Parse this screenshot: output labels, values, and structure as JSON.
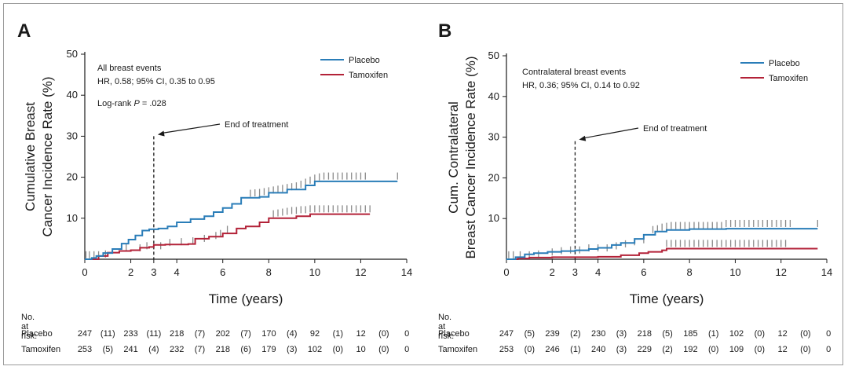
{
  "colors": {
    "placebo": "#2a7db8",
    "tamoxifen": "#b32238",
    "censor": "#8a8a8a",
    "axis": "#1a1a1a"
  },
  "chart_data": [
    {
      "panel": "A",
      "type": "line",
      "ylabel_lines": [
        "Cumulative Breast",
        "Cancer Incidence Rate (%)"
      ],
      "xlabel": "Time (years)",
      "xlim": [
        0,
        14
      ],
      "ylim": [
        0,
        50
      ],
      "xticks": [
        "0",
        "2",
        "3",
        "4",
        "6",
        "8",
        "10",
        "12",
        "14"
      ],
      "xtick_values": [
        0,
        2,
        3,
        4,
        6,
        8,
        10,
        12,
        14
      ],
      "yticks": [
        "10",
        "20",
        "30",
        "40",
        "50"
      ],
      "ytick_values": [
        10,
        20,
        30,
        40,
        50
      ],
      "annotation_lines": [
        "All breast events",
        "HR, 0.58; 95% CI, 0.35 to 0.95"
      ],
      "logrank_prefix": "Log-rank ",
      "logrank_p": "P",
      "logrank_value": " = .028",
      "end_of_treatment_label": "End of treatment",
      "end_of_treatment_x": 3,
      "end_of_treatment_y": 30,
      "legend": [
        "Placebo",
        "Tamoxifen"
      ],
      "series": [
        {
          "name": "Placebo",
          "points": [
            [
              0,
              0
            ],
            [
              0.3,
              0.3
            ],
            [
              0.5,
              0.8
            ],
            [
              0.8,
              1.5
            ],
            [
              1.2,
              2.5
            ],
            [
              1.6,
              3.8
            ],
            [
              1.9,
              4.8
            ],
            [
              2.2,
              5.8
            ],
            [
              2.5,
              7
            ],
            [
              2.8,
              7.3
            ],
            [
              3.2,
              7.5
            ],
            [
              3.6,
              8
            ],
            [
              4.0,
              9
            ],
            [
              4.6,
              9.8
            ],
            [
              5.2,
              10.5
            ],
            [
              5.6,
              11.5
            ],
            [
              6.0,
              12.5
            ],
            [
              6.4,
              13.5
            ],
            [
              6.8,
              15
            ],
            [
              7.6,
              15.2
            ],
            [
              8.0,
              16.2
            ],
            [
              8.8,
              17
            ],
            [
              9.6,
              18
            ],
            [
              10.0,
              19
            ],
            [
              13.6,
              19
            ]
          ]
        },
        {
          "name": "Tamoxifen",
          "points": [
            [
              0,
              0
            ],
            [
              0.6,
              0.8
            ],
            [
              1.0,
              1.6
            ],
            [
              1.5,
              2.0
            ],
            [
              2.0,
              2.2
            ],
            [
              2.4,
              2.8
            ],
            [
              2.8,
              3.0
            ],
            [
              3.0,
              3.5
            ],
            [
              3.5,
              3.6
            ],
            [
              4.5,
              3.7
            ],
            [
              4.8,
              5.0
            ],
            [
              5.4,
              5.5
            ],
            [
              6.0,
              6.3
            ],
            [
              6.6,
              7.5
            ],
            [
              7.0,
              8.0
            ],
            [
              7.6,
              9.0
            ],
            [
              8.0,
              10
            ],
            [
              9.2,
              10.5
            ],
            [
              9.8,
              11
            ],
            [
              12.4,
              11
            ]
          ]
        }
      ],
      "censor": {
        "placebo": [
          [
            7.2,
            15.8
          ],
          [
            7.4,
            15.9
          ],
          [
            7.6,
            16
          ],
          [
            7.8,
            16.2
          ],
          [
            8.0,
            16.4
          ],
          [
            8.2,
            16.6
          ],
          [
            8.4,
            16.8
          ],
          [
            8.6,
            17
          ],
          [
            8.8,
            17.2
          ],
          [
            9.0,
            17.4
          ],
          [
            9.2,
            17.6
          ],
          [
            9.4,
            18
          ],
          [
            9.6,
            18.5
          ],
          [
            9.8,
            19
          ],
          [
            10.0,
            19.5
          ],
          [
            10.2,
            19.8
          ],
          [
            10.4,
            20
          ],
          [
            10.6,
            20
          ],
          [
            10.8,
            20
          ],
          [
            11.0,
            20
          ],
          [
            11.2,
            20
          ],
          [
            11.4,
            20
          ],
          [
            11.6,
            20
          ],
          [
            11.8,
            20
          ],
          [
            12.0,
            20
          ],
          [
            12.2,
            20
          ],
          [
            13.6,
            20
          ]
        ],
        "tamoxifen": [
          [
            8.2,
            10.8
          ],
          [
            8.4,
            11
          ],
          [
            8.6,
            11.2
          ],
          [
            8.8,
            11.4
          ],
          [
            9.0,
            11.6
          ],
          [
            9.2,
            11.6
          ],
          [
            9.4,
            11.8
          ],
          [
            9.6,
            11.8
          ],
          [
            9.8,
            12
          ],
          [
            10.0,
            12
          ],
          [
            10.2,
            12
          ],
          [
            10.4,
            12
          ],
          [
            10.6,
            12
          ],
          [
            10.8,
            12
          ],
          [
            11.0,
            12
          ],
          [
            11.2,
            12
          ],
          [
            11.4,
            12
          ],
          [
            11.6,
            12
          ],
          [
            11.8,
            12
          ],
          [
            12.0,
            12
          ],
          [
            12.2,
            12
          ],
          [
            12.4,
            12
          ]
        ],
        "early": [
          [
            0.05,
            0.8
          ],
          [
            0.2,
            0.8
          ],
          [
            0.4,
            0.8
          ],
          [
            0.6,
            0.8
          ],
          [
            0.9,
            1.0
          ],
          [
            1.8,
            2.5
          ],
          [
            2.4,
            2.5
          ],
          [
            2.7,
            3.0
          ],
          [
            3.3,
            3.0
          ],
          [
            3.7,
            3.8
          ],
          [
            4.2,
            4.0
          ],
          [
            4.7,
            4.2
          ],
          [
            5.2,
            4.8
          ],
          [
            5.7,
            5.5
          ],
          [
            5.9,
            6.0
          ],
          [
            6.2,
            7.0
          ]
        ]
      },
      "risk_table": {
        "title": "No. at risk:",
        "rows": [
          {
            "label": "Placebo",
            "cells": [
              "247",
              "(11)",
              "233",
              "(11)",
              "218",
              "(7)",
              "202",
              "(7)",
              "170",
              "(4)",
              "92",
              "(1)",
              "12",
              "(0)",
              "0"
            ]
          },
          {
            "label": "Tamoxifen",
            "cells": [
              "253",
              "(5)",
              "241",
              "(4)",
              "232",
              "(7)",
              "218",
              "(6)",
              "179",
              "(3)",
              "102",
              "(0)",
              "10",
              "(0)",
              "0"
            ]
          }
        ]
      }
    },
    {
      "panel": "B",
      "type": "line",
      "ylabel_lines": [
        "Cum. Contralateral",
        "Breast Cancer Incidence Rate (%)"
      ],
      "xlabel": "Time (years)",
      "xlim": [
        0,
        14
      ],
      "ylim": [
        0,
        50
      ],
      "xticks": [
        "0",
        "2",
        "3",
        "4",
        "6",
        "8",
        "10",
        "12",
        "14"
      ],
      "xtick_values": [
        0,
        2,
        3,
        4,
        6,
        8,
        10,
        12,
        14
      ],
      "yticks": [
        "10",
        "20",
        "30",
        "40",
        "50"
      ],
      "ytick_values": [
        10,
        20,
        30,
        40,
        50
      ],
      "annotation_lines": [
        "Contralateral breast events",
        "HR, 0.36; 95% CI, 0.14 to 0.92"
      ],
      "end_of_treatment_label": "End of treatment",
      "end_of_treatment_x": 3,
      "end_of_treatment_y": 29,
      "legend": [
        "Placebo",
        "Tamoxifen"
      ],
      "series": [
        {
          "name": "Placebo",
          "points": [
            [
              0,
              0
            ],
            [
              0.4,
              0.5
            ],
            [
              0.8,
              1.2
            ],
            [
              1.2,
              1.5
            ],
            [
              1.8,
              1.8
            ],
            [
              2.4,
              2.0
            ],
            [
              3.0,
              2.2
            ],
            [
              3.6,
              2.5
            ],
            [
              4.0,
              2.8
            ],
            [
              4.6,
              3.5
            ],
            [
              5.0,
              4.0
            ],
            [
              5.6,
              5.0
            ],
            [
              6.0,
              6.0
            ],
            [
              6.5,
              6.8
            ],
            [
              7.0,
              7.2
            ],
            [
              8.0,
              7.4
            ],
            [
              9.6,
              7.5
            ],
            [
              13.6,
              7.5
            ]
          ]
        },
        {
          "name": "Tamoxifen",
          "points": [
            [
              0,
              0
            ],
            [
              0.5,
              0.2
            ],
            [
              1.0,
              0.4
            ],
            [
              2.0,
              0.5
            ],
            [
              3.0,
              0.5
            ],
            [
              4.0,
              0.6
            ],
            [
              5.0,
              1.0
            ],
            [
              5.8,
              1.5
            ],
            [
              6.2,
              1.8
            ],
            [
              6.8,
              2.2
            ],
            [
              7.0,
              2.6
            ],
            [
              13.6,
              2.6
            ]
          ]
        }
      ],
      "censor": {
        "placebo": [
          [
            6.4,
            7
          ],
          [
            6.6,
            7.2
          ],
          [
            6.8,
            7.6
          ],
          [
            7.0,
            7.8
          ],
          [
            7.2,
            8
          ],
          [
            7.4,
            8
          ],
          [
            7.6,
            8
          ],
          [
            7.8,
            8
          ],
          [
            8.0,
            8
          ],
          [
            8.2,
            8
          ],
          [
            8.4,
            8
          ],
          [
            8.6,
            8
          ],
          [
            8.8,
            8
          ],
          [
            9.0,
            8
          ],
          [
            9.2,
            8
          ],
          [
            9.4,
            8
          ],
          [
            9.6,
            8.5
          ],
          [
            9.8,
            8.5
          ],
          [
            10.0,
            8.5
          ],
          [
            10.2,
            8.5
          ],
          [
            10.4,
            8.5
          ],
          [
            10.6,
            8.5
          ],
          [
            10.8,
            8.5
          ],
          [
            11.0,
            8.5
          ],
          [
            11.2,
            8.5
          ],
          [
            11.4,
            8.5
          ],
          [
            11.6,
            8.5
          ],
          [
            11.8,
            8.5
          ],
          [
            12.0,
            8.5
          ],
          [
            12.2,
            8.5
          ],
          [
            12.4,
            8.5
          ],
          [
            13.6,
            8.5
          ]
        ],
        "tamoxifen": [
          [
            7.0,
            3.6
          ],
          [
            7.2,
            3.6
          ],
          [
            7.4,
            3.6
          ],
          [
            7.6,
            3.6
          ],
          [
            7.8,
            3.6
          ],
          [
            8.0,
            3.6
          ],
          [
            8.2,
            3.6
          ],
          [
            8.4,
            3.6
          ],
          [
            8.6,
            3.6
          ],
          [
            8.8,
            3.6
          ],
          [
            9.0,
            3.6
          ],
          [
            9.2,
            3.6
          ],
          [
            9.4,
            3.6
          ],
          [
            9.6,
            3.6
          ],
          [
            9.8,
            3.6
          ],
          [
            10.0,
            3.6
          ],
          [
            10.2,
            3.6
          ],
          [
            10.4,
            3.6
          ],
          [
            10.6,
            3.6
          ],
          [
            10.8,
            3.6
          ],
          [
            11.0,
            3.6
          ],
          [
            11.2,
            3.6
          ],
          [
            11.4,
            3.6
          ],
          [
            11.6,
            3.6
          ],
          [
            11.8,
            3.6
          ],
          [
            12.0,
            3.6
          ],
          [
            12.2,
            3.6
          ]
        ],
        "early": [
          [
            0.1,
            0.8
          ],
          [
            0.3,
            0.8
          ],
          [
            0.6,
            0.8
          ],
          [
            1.0,
            0.8
          ],
          [
            1.4,
            1.0
          ],
          [
            2.0,
            1.5
          ],
          [
            2.4,
            1.8
          ],
          [
            2.8,
            2.0
          ],
          [
            3.2,
            2.0
          ],
          [
            3.6,
            2.5
          ],
          [
            4.0,
            2.5
          ],
          [
            4.4,
            2.5
          ],
          [
            4.8,
            3.0
          ],
          [
            5.2,
            3.5
          ],
          [
            5.6,
            4.0
          ],
          [
            6.0,
            4.5
          ]
        ]
      },
      "risk_table": {
        "title": "No. at risk:",
        "rows": [
          {
            "label": "Placebo",
            "cells": [
              "247",
              "(5)",
              "239",
              "(2)",
              "230",
              "(3)",
              "218",
              "(5)",
              "185",
              "(1)",
              "102",
              "(0)",
              "12",
              "(0)",
              "0"
            ]
          },
          {
            "label": "Tamoxifen",
            "cells": [
              "253",
              "(0)",
              "246",
              "(1)",
              "240",
              "(3)",
              "229",
              "(2)",
              "192",
              "(0)",
              "109",
              "(0)",
              "12",
              "(0)",
              "0"
            ]
          }
        ]
      }
    }
  ]
}
